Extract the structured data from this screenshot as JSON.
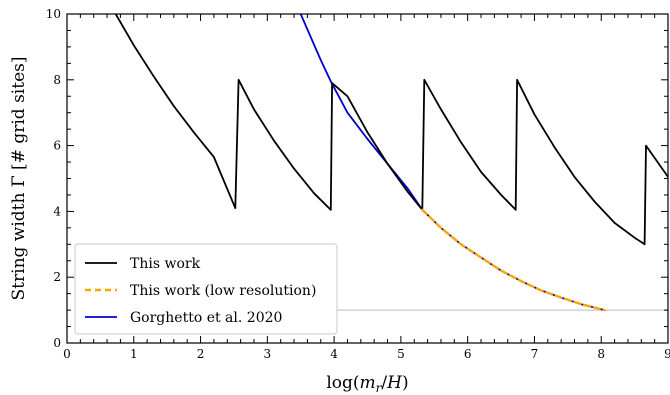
{
  "chart_data": {
    "type": "line",
    "xlabel": "log(m_r/H)",
    "ylabel": "String width Γ [# grid sites]",
    "xlim": [
      0,
      9
    ],
    "ylim": [
      0,
      10
    ],
    "x_ticks": [
      "0",
      "1",
      "2",
      "3",
      "4",
      "5",
      "6",
      "7",
      "8",
      "9"
    ],
    "y_ticks": [
      "0",
      "2",
      "4",
      "6",
      "8",
      "10"
    ],
    "grid": false,
    "legend_position": "bottom-left",
    "reference_line": {
      "y": 1.0,
      "x_start": 4.0,
      "x_end": 9.0,
      "color": "#c8c8c8"
    },
    "series": [
      {
        "name": "This work",
        "color": "#000000",
        "style": "solid",
        "x": [
          0.73,
          1.0,
          1.3,
          1.6,
          1.9,
          2.2,
          2.52,
          2.57,
          2.8,
          3.1,
          3.4,
          3.7,
          3.95,
          3.97,
          4.2,
          4.5,
          4.8,
          5.1,
          5.32,
          5.35,
          5.6,
          5.9,
          6.2,
          6.5,
          6.72,
          6.74,
          7.0,
          7.3,
          7.6,
          7.9,
          8.2,
          8.5,
          8.65,
          8.67,
          9.0
        ],
        "y": [
          10.0,
          9.05,
          8.1,
          7.2,
          6.4,
          5.65,
          4.1,
          8.0,
          7.1,
          6.15,
          5.3,
          4.55,
          4.05,
          7.9,
          7.5,
          6.4,
          5.45,
          4.6,
          4.05,
          8.0,
          7.1,
          6.1,
          5.2,
          4.5,
          4.05,
          8.0,
          6.95,
          5.95,
          5.05,
          4.3,
          3.65,
          3.2,
          3.0,
          6.0,
          5.05
        ]
      },
      {
        "name": "This work (low resolution)",
        "color": "#ffa500",
        "style": "dashed",
        "x": [
          5.32,
          5.6,
          5.9,
          6.2,
          6.5,
          6.8,
          7.1,
          7.4,
          7.7,
          8.05
        ],
        "y": [
          4.05,
          3.5,
          3.0,
          2.6,
          2.2,
          1.88,
          1.6,
          1.38,
          1.18,
          1.0
        ]
      },
      {
        "name": "Gorghetto et al. 2020",
        "color": "#0000cc",
        "style": "solid",
        "x": [
          3.5,
          3.65,
          3.8,
          3.95,
          4.2,
          4.5,
          4.8,
          5.1,
          5.32,
          5.6,
          5.9,
          6.2,
          6.5,
          6.8,
          7.1,
          7.4,
          7.7,
          8.05
        ],
        "y": [
          10.0,
          9.3,
          8.6,
          7.95,
          7.0,
          6.2,
          5.45,
          4.7,
          4.05,
          3.5,
          3.0,
          2.6,
          2.2,
          1.88,
          1.6,
          1.38,
          1.18,
          1.0
        ]
      }
    ]
  }
}
